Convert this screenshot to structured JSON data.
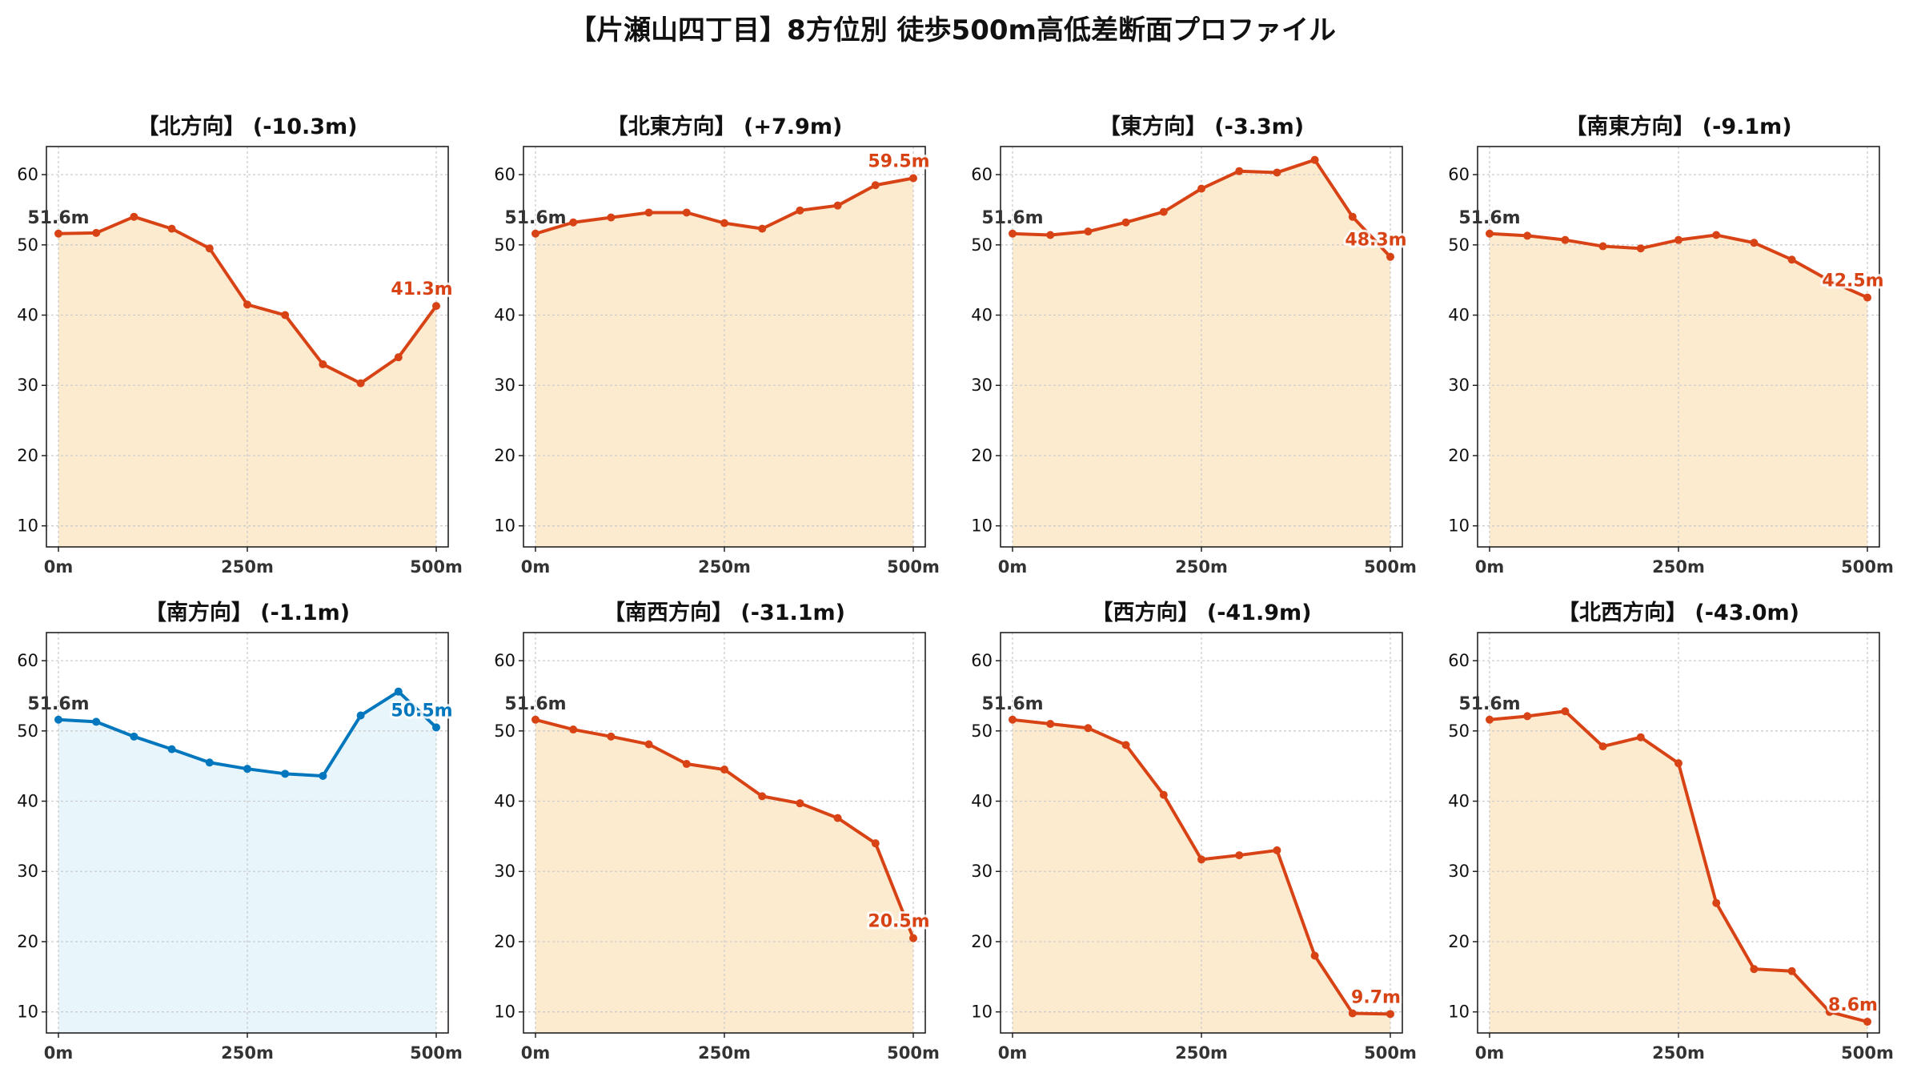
{
  "title": "【片瀬山四丁目】8方位別 徒歩500m高低差断面プロファイル",
  "colors": {
    "loss_line": "#d84315",
    "loss_fill": "#fdebd0",
    "gain_line": "#0277bd",
    "gain_fill": "#e8f6fc",
    "grid": "#cccccc",
    "axis": "#222222"
  },
  "chart_data": [
    {
      "type": "area",
      "title": "【北方向】 (-10.3m)",
      "style": "loss",
      "x": [
        0,
        50,
        100,
        150,
        200,
        250,
        300,
        350,
        400,
        450,
        500
      ],
      "y": [
        51.6,
        51.7,
        54.0,
        52.3,
        49.5,
        41.5,
        40.0,
        33.0,
        30.3,
        34.0,
        41.3
      ],
      "start_label": "51.6m",
      "end_label": "41.3m",
      "xticks": [
        "0m",
        "250m",
        "500m"
      ],
      "yticks": [
        10,
        20,
        30,
        40,
        50,
        60
      ],
      "xlim": [
        0,
        500
      ],
      "ylim": [
        7,
        64
      ],
      "grid": true
    },
    {
      "type": "area",
      "title": "【北東方向】 (+7.9m)",
      "style": "loss",
      "x": [
        0,
        50,
        100,
        150,
        200,
        250,
        300,
        350,
        400,
        450,
        500
      ],
      "y": [
        51.6,
        53.2,
        53.9,
        54.6,
        54.6,
        53.1,
        52.3,
        54.9,
        55.6,
        58.5,
        59.5
      ],
      "start_label": "51.6m",
      "end_label": "59.5m",
      "xticks": [
        "0m",
        "250m",
        "500m"
      ],
      "yticks": [
        10,
        20,
        30,
        40,
        50,
        60
      ],
      "xlim": [
        0,
        500
      ],
      "ylim": [
        7,
        64
      ],
      "grid": true
    },
    {
      "type": "area",
      "title": "【東方向】 (-3.3m)",
      "style": "loss",
      "x": [
        0,
        50,
        100,
        150,
        200,
        250,
        300,
        350,
        400,
        450,
        500
      ],
      "y": [
        51.6,
        51.4,
        51.9,
        53.2,
        54.7,
        58.0,
        60.5,
        60.3,
        62.1,
        54.0,
        48.3
      ],
      "start_label": "51.6m",
      "end_label": "48.3m",
      "xticks": [
        "0m",
        "250m",
        "500m"
      ],
      "yticks": [
        10,
        20,
        30,
        40,
        50,
        60
      ],
      "xlim": [
        0,
        500
      ],
      "ylim": [
        7,
        64
      ],
      "grid": true
    },
    {
      "type": "area",
      "title": "【南東方向】 (-9.1m)",
      "style": "loss",
      "x": [
        0,
        50,
        100,
        150,
        200,
        250,
        300,
        350,
        400,
        450,
        500
      ],
      "y": [
        51.6,
        51.3,
        50.7,
        49.8,
        49.5,
        50.7,
        51.4,
        50.3,
        47.9,
        44.9,
        42.5
      ],
      "start_label": "51.6m",
      "end_label": "42.5m",
      "xticks": [
        "0m",
        "250m",
        "500m"
      ],
      "yticks": [
        10,
        20,
        30,
        40,
        50,
        60
      ],
      "xlim": [
        0,
        500
      ],
      "ylim": [
        7,
        64
      ],
      "grid": true
    },
    {
      "type": "area",
      "title": "【南方向】 (-1.1m)",
      "style": "gain",
      "x": [
        0,
        50,
        100,
        150,
        200,
        250,
        300,
        350,
        400,
        450,
        500
      ],
      "y": [
        51.6,
        51.3,
        49.2,
        47.4,
        45.5,
        44.6,
        43.9,
        43.6,
        52.2,
        55.6,
        50.5
      ],
      "start_label": "51.6m",
      "end_label": "50.5m",
      "xticks": [
        "0m",
        "250m",
        "500m"
      ],
      "yticks": [
        10,
        20,
        30,
        40,
        50,
        60
      ],
      "xlim": [
        0,
        500
      ],
      "ylim": [
        7,
        64
      ],
      "grid": true
    },
    {
      "type": "area",
      "title": "【南西方向】 (-31.1m)",
      "style": "loss",
      "x": [
        0,
        50,
        100,
        150,
        200,
        250,
        300,
        350,
        400,
        450,
        500
      ],
      "y": [
        51.6,
        50.2,
        49.2,
        48.1,
        45.3,
        44.5,
        40.7,
        39.7,
        37.6,
        34.0,
        20.5
      ],
      "start_label": "51.6m",
      "end_label": "20.5m",
      "xticks": [
        "0m",
        "250m",
        "500m"
      ],
      "yticks": [
        10,
        20,
        30,
        40,
        50,
        60
      ],
      "xlim": [
        0,
        500
      ],
      "ylim": [
        7,
        64
      ],
      "grid": true
    },
    {
      "type": "area",
      "title": "【西方向】 (-41.9m)",
      "style": "loss",
      "x": [
        0,
        50,
        100,
        150,
        200,
        250,
        300,
        350,
        400,
        450,
        500
      ],
      "y": [
        51.6,
        51.0,
        50.4,
        48.0,
        40.9,
        31.7,
        32.3,
        33.0,
        18.0,
        9.8,
        9.7
      ],
      "start_label": "51.6m",
      "end_label": "9.7m",
      "xticks": [
        "0m",
        "250m",
        "500m"
      ],
      "yticks": [
        10,
        20,
        30,
        40,
        50,
        60
      ],
      "xlim": [
        0,
        500
      ],
      "ylim": [
        7,
        64
      ],
      "grid": true
    },
    {
      "type": "area",
      "title": "【北西方向】 (-43.0m)",
      "style": "loss",
      "x": [
        0,
        50,
        100,
        150,
        200,
        250,
        300,
        350,
        400,
        450,
        500
      ],
      "y": [
        51.6,
        52.1,
        52.8,
        47.8,
        49.1,
        45.4,
        25.5,
        16.1,
        15.8,
        10.0,
        8.6
      ],
      "start_label": "51.6m",
      "end_label": "8.6m",
      "xticks": [
        "0m",
        "250m",
        "500m"
      ],
      "yticks": [
        10,
        20,
        30,
        40,
        50,
        60
      ],
      "xlim": [
        0,
        500
      ],
      "ylim": [
        7,
        64
      ],
      "grid": true
    }
  ]
}
